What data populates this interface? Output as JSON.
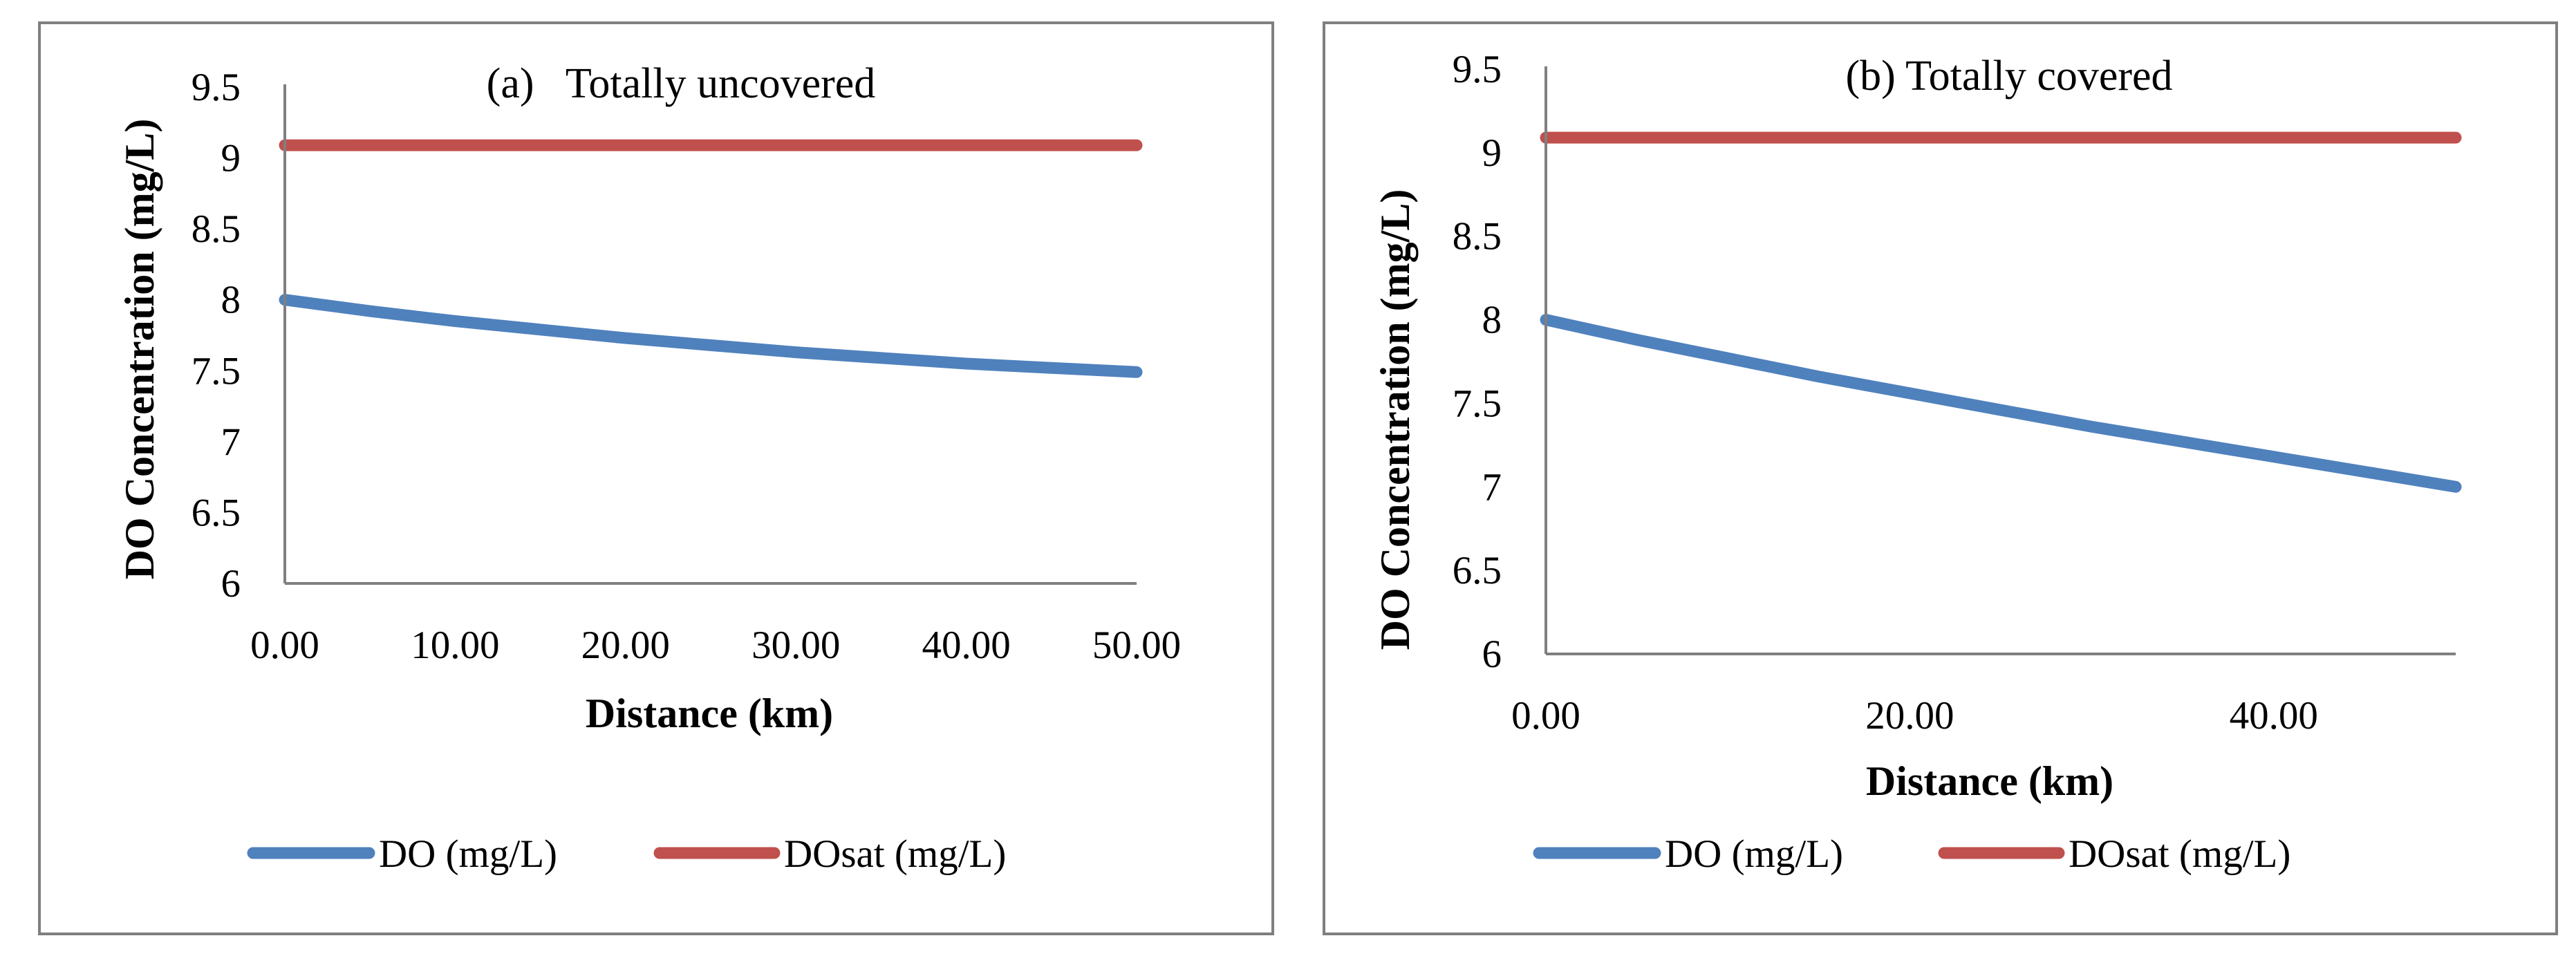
{
  "colors": {
    "do": "#4f81bd",
    "dosat": "#c0504d",
    "axis": "#7f7f7f",
    "frame": "#7f7f7f"
  },
  "chart_data": [
    {
      "type": "line",
      "title": "(a)   Totally uncovered",
      "xlabel": "Distance (km)",
      "ylabel": "DO Concentration (mg/L)",
      "xlim": [
        0,
        50
      ],
      "ylim": [
        6,
        9.5
      ],
      "x_ticks": [
        "0.00",
        "10.00",
        "20.00",
        "30.00",
        "40.00",
        "50.00"
      ],
      "y_ticks": [
        "6",
        "6.5",
        "7",
        "7.5",
        "8",
        "8.5",
        "9",
        "9.5"
      ],
      "grid": false,
      "legend_position": "bottom",
      "series": [
        {
          "name": "DO (mg/L)",
          "x": [
            0,
            5,
            10,
            15,
            20,
            25,
            30,
            35,
            40,
            45,
            50
          ],
          "y": [
            8.0,
            7.92,
            7.85,
            7.79,
            7.73,
            7.68,
            7.63,
            7.59,
            7.55,
            7.52,
            7.49
          ]
        },
        {
          "name": "DOsat (mg/L)",
          "x": [
            0,
            50
          ],
          "y": [
            9.09,
            9.09
          ]
        }
      ]
    },
    {
      "type": "line",
      "title": "(b) Totally covered",
      "xlabel": "Distance (km)",
      "ylabel": "DO Concentration (mg/L)",
      "xlim": [
        0,
        50
      ],
      "ylim": [
        6,
        9.5
      ],
      "x_ticks": [
        "0.00",
        "20.00",
        "40.00"
      ],
      "y_ticks": [
        "6",
        "6.5",
        "7",
        "7.5",
        "8",
        "8.5",
        "9",
        "9.5"
      ],
      "grid": false,
      "legend_position": "bottom",
      "series": [
        {
          "name": "DO (mg/L)",
          "x": [
            0,
            5,
            10,
            15,
            20,
            25,
            30,
            35,
            40,
            45,
            50
          ],
          "y": [
            8.0,
            7.88,
            7.77,
            7.66,
            7.56,
            7.46,
            7.36,
            7.27,
            7.18,
            7.09,
            7.0
          ]
        },
        {
          "name": "DOsat (mg/L)",
          "x": [
            0,
            50
          ],
          "y": [
            9.09,
            9.09
          ]
        }
      ]
    }
  ]
}
